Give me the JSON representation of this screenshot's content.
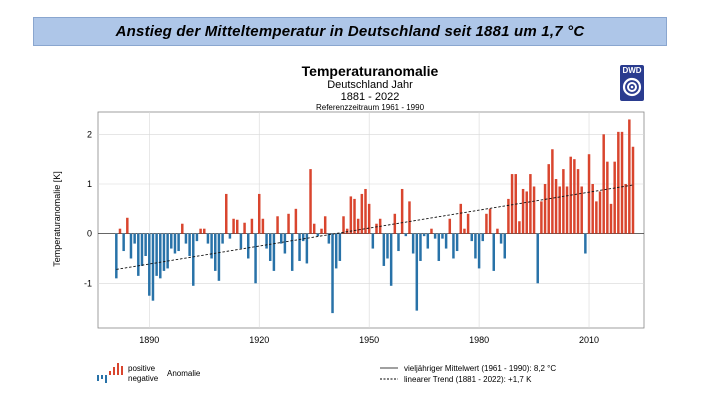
{
  "banner": {
    "title": "Anstieg der Mitteltemperatur in Deutschland seit 1881 um 1,7 °C"
  },
  "logo": {
    "text": "DWD"
  },
  "legend": {
    "positive": "positive",
    "negative": "negative",
    "anomaly": "Anomalie",
    "mean": "vieljähriger Mittelwert (1961 - 1990): 8,2 °C",
    "trend": "linearer Trend (1881 - 2022): +1,7 K"
  },
  "colors": {
    "positive": "#d9452e",
    "negative": "#2872a8",
    "banner": "#aec6e8"
  },
  "chart_data": {
    "type": "bar",
    "title": "Temperaturanomalie",
    "subtitle": "Deutschland Jahr",
    "period": "1881 - 2022",
    "reference": "Referenzzeitraum 1961 - 1990",
    "ylabel": "Temperaturanomalie [K]",
    "xlabel": "",
    "ylim": [
      -1.9,
      2.45
    ],
    "xlim": [
      1876,
      2025
    ],
    "yticks": [
      -1,
      0,
      1,
      2
    ],
    "ytick_labels": [
      "-1",
      "0",
      "1",
      "2"
    ],
    "xticks": [
      1890,
      1920,
      1950,
      1980,
      2010
    ],
    "xtick_labels": [
      "1890",
      "1920",
      "1950",
      "1980",
      "2010"
    ],
    "trend": {
      "start_year": 1881,
      "end_year": 2022,
      "start_value": -0.72,
      "end_value": 0.98
    },
    "years": [
      1881,
      1882,
      1883,
      1884,
      1885,
      1886,
      1887,
      1888,
      1889,
      1890,
      1891,
      1892,
      1893,
      1894,
      1895,
      1896,
      1897,
      1898,
      1899,
      1900,
      1901,
      1902,
      1903,
      1904,
      1905,
      1906,
      1907,
      1908,
      1909,
      1910,
      1911,
      1912,
      1913,
      1914,
      1915,
      1916,
      1917,
      1918,
      1919,
      1920,
      1921,
      1922,
      1923,
      1924,
      1925,
      1926,
      1927,
      1928,
      1929,
      1930,
      1931,
      1932,
      1933,
      1934,
      1935,
      1936,
      1937,
      1938,
      1939,
      1940,
      1941,
      1942,
      1943,
      1944,
      1945,
      1946,
      1947,
      1948,
      1949,
      1950,
      1951,
      1952,
      1953,
      1954,
      1955,
      1956,
      1957,
      1958,
      1959,
      1960,
      1961,
      1962,
      1963,
      1964,
      1965,
      1966,
      1967,
      1968,
      1969,
      1970,
      1971,
      1972,
      1973,
      1974,
      1975,
      1976,
      1977,
      1978,
      1979,
      1980,
      1981,
      1982,
      1983,
      1984,
      1985,
      1986,
      1987,
      1988,
      1989,
      1990,
      1991,
      1992,
      1993,
      1994,
      1995,
      1996,
      1997,
      1998,
      1999,
      2000,
      2001,
      2002,
      2003,
      2004,
      2005,
      2006,
      2007,
      2008,
      2009,
      2010,
      2011,
      2012,
      2013,
      2014,
      2015,
      2016,
      2017,
      2018,
      2019,
      2020,
      2021,
      2022
    ],
    "values": [
      -0.9,
      0.1,
      -0.35,
      0.32,
      -0.5,
      -0.2,
      -0.85,
      -0.65,
      -0.45,
      -1.25,
      -1.35,
      -0.85,
      -0.9,
      -0.75,
      -0.7,
      -0.3,
      -0.4,
      -0.35,
      0.2,
      -0.2,
      -0.45,
      -1.05,
      -0.15,
      0.1,
      0.1,
      -0.2,
      -0.5,
      -0.75,
      -0.95,
      -0.2,
      0.8,
      -0.1,
      0.3,
      0.28,
      -0.3,
      0.22,
      -0.5,
      0.3,
      -1.0,
      0.8,
      0.3,
      -0.3,
      -0.55,
      -0.75,
      0.35,
      -0.2,
      -0.4,
      0.4,
      -0.75,
      0.5,
      -0.55,
      -0.15,
      -0.6,
      1.3,
      0.2,
      -0.05,
      0.1,
      0.35,
      -0.2,
      -1.6,
      -0.7,
      -0.55,
      0.35,
      0.1,
      0.75,
      0.7,
      0.3,
      0.8,
      0.9,
      0.6,
      -0.3,
      0.2,
      0.3,
      -0.65,
      -0.5,
      -1.05,
      0.4,
      -0.35,
      0.9,
      -0.05,
      0.65,
      -0.4,
      -1.55,
      -0.55,
      -0.05,
      -0.3,
      0.1,
      -0.1,
      -0.55,
      -0.1,
      -0.3,
      0.3,
      -0.5,
      -0.35,
      0.6,
      0.1,
      0.4,
      -0.15,
      -0.5,
      -0.7,
      -0.15,
      0.4,
      0.5,
      -0.75,
      0.1,
      -0.2,
      -0.5,
      0.7,
      1.2,
      1.2,
      0.25,
      0.9,
      0.85,
      1.2,
      0.95,
      -1.0,
      0.65,
      1.0,
      1.4,
      1.7,
      1.1,
      0.95,
      1.3,
      0.95,
      1.55,
      1.5,
      1.3,
      0.95,
      -0.4,
      1.6,
      1.0,
      0.65,
      0.85,
      2.0,
      1.45,
      0.6,
      1.45,
      2.05,
      2.05,
      1.0,
      2.3,
      1.75
    ]
  }
}
